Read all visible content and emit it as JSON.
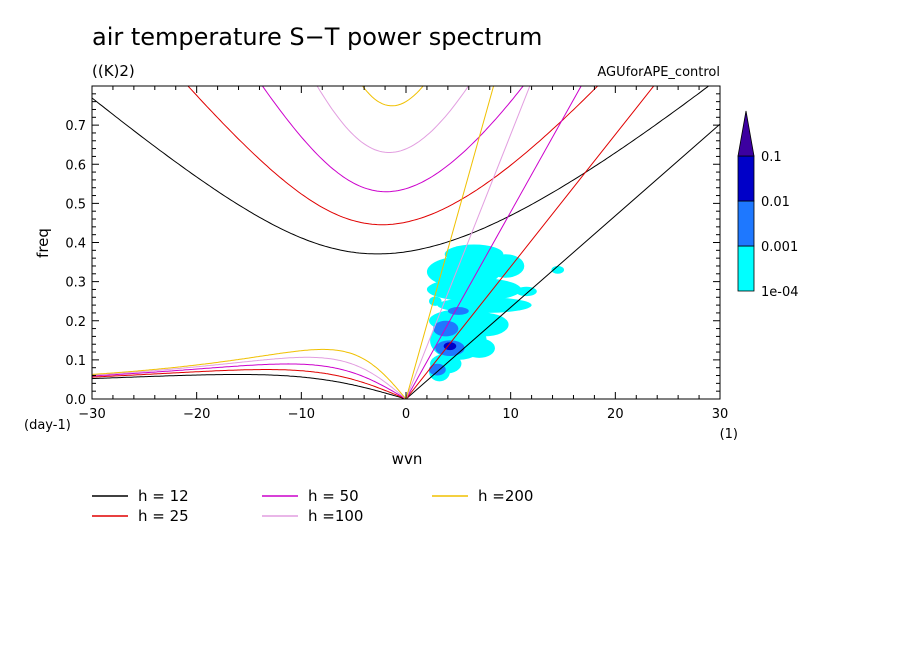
{
  "chart_data": {
    "type": "line",
    "title": "air temperature S−T power spectrum",
    "units": "((K)2)",
    "dataset": "AGUforAPE_control",
    "xlabel": "wvn",
    "ylabel": "freq",
    "x_unit": "(1)",
    "y_unit": "(day-1)",
    "xlim": [
      -30,
      30
    ],
    "ylim": [
      0,
      0.8
    ],
    "x_ticks": [
      "−30",
      "−20",
      "−10",
      "0",
      "10",
      "20",
      "30"
    ],
    "y_ticks": [
      "0.0",
      "0.1",
      "0.2",
      "0.3",
      "0.4",
      "0.5",
      "0.6",
      "0.7"
    ],
    "legend_position": "below",
    "series": [
      {
        "name": "h = 12",
        "h": 12,
        "color": "#000000"
      },
      {
        "name": "h = 25",
        "h": 25,
        "color": "#e00000"
      },
      {
        "name": "h = 50",
        "h": 50,
        "color": "#cc00cc"
      },
      {
        "name": "h =100",
        "h": 100,
        "color": "#e29ee0"
      },
      {
        "name": "h =200",
        "h": 200,
        "color": "#f0c000"
      }
    ],
    "colorbar": {
      "labels": [
        "0.1",
        "0.01",
        "0.001",
        "1e-04"
      ],
      "colors": [
        "#00ffff",
        "#1e78ff",
        "#0000c8",
        "#3c00a0"
      ]
    },
    "contours": [
      {
        "x": 6.5,
        "y": 0.37,
        "rx": 2.8,
        "ry": 0.025,
        "level": 0
      },
      {
        "x": 5.5,
        "y": 0.325,
        "rx": 3.5,
        "ry": 0.04,
        "level": 0
      },
      {
        "x": 9.5,
        "y": 0.34,
        "rx": 1.8,
        "ry": 0.03,
        "level": 0
      },
      {
        "x": 6.5,
        "y": 0.28,
        "rx": 4.5,
        "ry": 0.03,
        "level": 0
      },
      {
        "x": 7.5,
        "y": 0.24,
        "rx": 4.5,
        "ry": 0.02,
        "level": 0
      },
      {
        "x": 5.5,
        "y": 0.2,
        "rx": 3.3,
        "ry": 0.03,
        "level": 0
      },
      {
        "x": 7.5,
        "y": 0.19,
        "rx": 2.3,
        "ry": 0.03,
        "level": 0
      },
      {
        "x": 5.0,
        "y": 0.15,
        "rx": 2.7,
        "ry": 0.05,
        "level": 0
      },
      {
        "x": 7.0,
        "y": 0.13,
        "rx": 1.5,
        "ry": 0.025,
        "level": 0
      },
      {
        "x": 3.8,
        "y": 0.09,
        "rx": 1.5,
        "ry": 0.025,
        "level": 0
      },
      {
        "x": 3.2,
        "y": 0.07,
        "rx": 1.0,
        "ry": 0.025,
        "level": 0
      },
      {
        "x": 11.5,
        "y": 0.275,
        "rx": 1.0,
        "ry": 0.012,
        "level": 0
      },
      {
        "x": 14.5,
        "y": 0.33,
        "rx": 0.6,
        "ry": 0.01,
        "level": 0
      },
      {
        "x": 2.8,
        "y": 0.25,
        "rx": 0.6,
        "ry": 0.012,
        "level": 0
      },
      {
        "x": 3.8,
        "y": 0.18,
        "rx": 1.2,
        "ry": 0.02,
        "level": 1
      },
      {
        "x": 4.2,
        "y": 0.13,
        "rx": 1.4,
        "ry": 0.02,
        "level": 1
      },
      {
        "x": 3.0,
        "y": 0.075,
        "rx": 0.8,
        "ry": 0.015,
        "level": 1
      },
      {
        "x": 5.0,
        "y": 0.225,
        "rx": 1.0,
        "ry": 0.01,
        "level": 1
      },
      {
        "x": 4.2,
        "y": 0.135,
        "rx": 0.6,
        "ry": 0.01,
        "level": 2
      }
    ]
  }
}
